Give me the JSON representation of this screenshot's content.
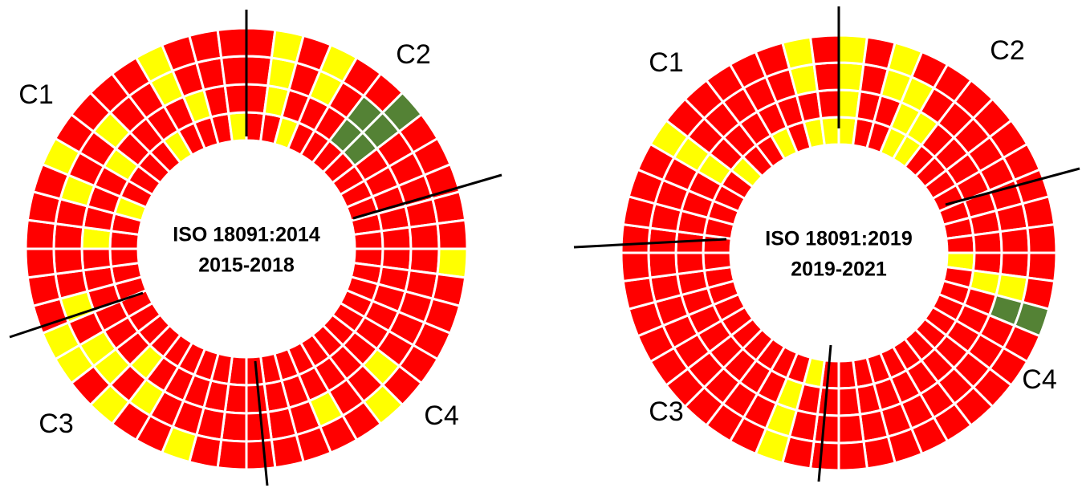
{
  "colors": {
    "R": "#ff0000",
    "Y": "#ffff00",
    "G": "#548235"
  },
  "charts": [
    {
      "center_lines": [
        "ISO 18091:2014",
        "2015-2018"
      ],
      "labels": [
        "C1",
        "C2",
        "C3",
        "C4"
      ],
      "rings": [
        "RRYRRRRRRRRRRRRRRRRRRRRRRRRRRRRRRRRRRRYRRRRYRRRY",
        "RYRRRGGRRRRRRRRRRRRRRRRRRRRRRYRRRRRRYRRRYRRRRYRR",
        "RYRYRGGRRRRRRRRRRYRRYRRRRRRRYRYYRYRRRRYRRYRRYRRR",
        "RYRYRRGRRRRRYRRRRRYRRRRRRRYRRYRYYRRRRRRYRRRRYRRR"
      ]
    },
    {
      "center_lines": [
        "ISO 18091:2019",
        "2019-2021"
      ],
      "labels": [
        "C1",
        "C2",
        "C3",
        "C4"
      ],
      "rings": [
        "YRRYYRRRRRRRYRRRRRRRRRRRRYRRRRRRRRRRRRRRRYRRYRYY",
        "YRRYYRRRRRRRRYRRRRRRRRRRRRYRRRRRRRRRRRRRYRRRRRRR",
        "YRYYRRRRRRRRRYGRRRRRRRRRRRYRRRRRRRRRRRRRYRRRRRYR",
        "YRYRRRRRRRRRRRGRRRRRRRRRRRYRRRRRRRRRRRRRYRRRRRYR"
      ]
    }
  ]
}
